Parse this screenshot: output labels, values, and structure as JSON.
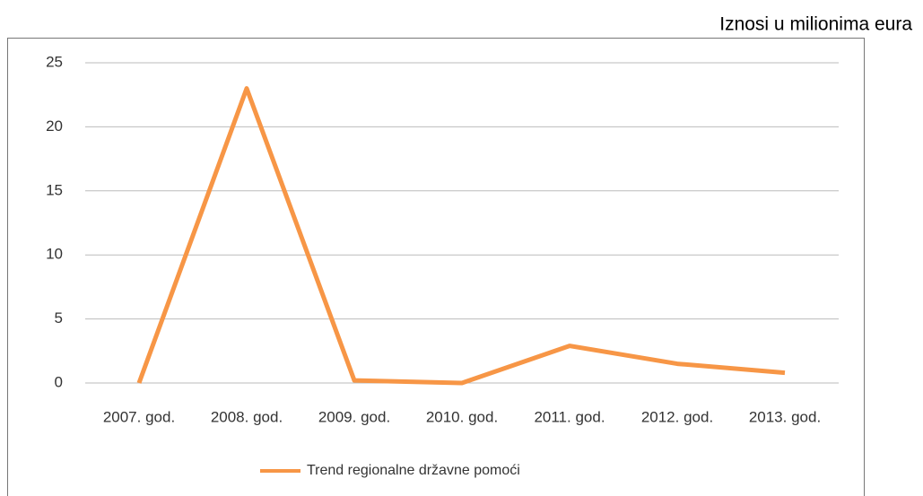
{
  "chart_data": {
    "type": "line",
    "annotation": "Iznosi u milionima eura",
    "categories": [
      "2007. god.",
      "2008. god.",
      "2009. god.",
      "2010. god.",
      "2011. god.",
      "2012. god.",
      "2013. god."
    ],
    "series": [
      {
        "name": "Trend regionalne državne pomoći",
        "color": "#f79646",
        "values": [
          0,
          23,
          0.2,
          0,
          2.9,
          1.5,
          0.8
        ]
      }
    ],
    "ylim": [
      0,
      25
    ],
    "yticks": [
      0,
      5,
      10,
      15,
      20,
      25
    ],
    "grid": true,
    "legend": "bottom"
  }
}
